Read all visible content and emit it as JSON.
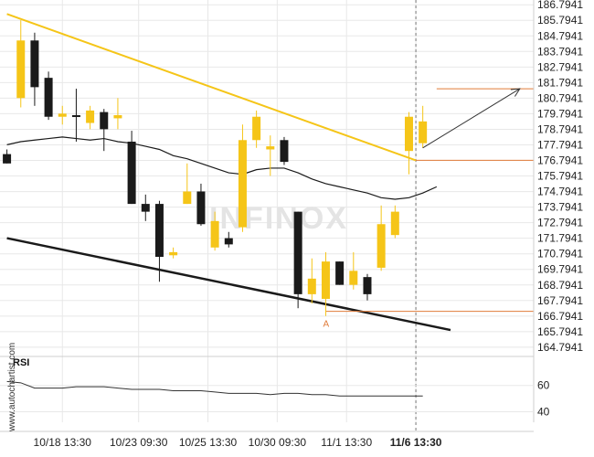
{
  "chart_data": [
    {
      "type": "candlestick",
      "watermark": "INFINOX",
      "side_label": "www.autochartist.com",
      "y_ticks": [
        "186.7941",
        "185.7941",
        "184.7941",
        "183.7941",
        "182.7941",
        "181.7941",
        "180.7941",
        "179.7941",
        "178.7941",
        "177.7941",
        "176.7941",
        "175.7941",
        "174.7941",
        "173.7941",
        "172.7941",
        "171.7941",
        "170.7941",
        "169.7941",
        "168.7941",
        "167.7941",
        "166.7941",
        "165.7941",
        "164.7941"
      ],
      "ylim": [
        164.2,
        187.1
      ],
      "x_ticks": [
        {
          "label": "10/18 13:30",
          "x": 4,
          "bold": false
        },
        {
          "label": "10/23 09:30",
          "x": 9.5,
          "bold": false
        },
        {
          "label": "10/25 13:30",
          "x": 14.5,
          "bold": false
        },
        {
          "label": "10/30 09:30",
          "x": 19.5,
          "bold": false
        },
        {
          "label": "11/1 13:30",
          "x": 24.5,
          "bold": false
        },
        {
          "label": "11/6 13:30",
          "x": 29.5,
          "bold": true
        }
      ],
      "xlim": [
        -0.5,
        38
      ],
      "colors": {
        "bull": "#f5c518",
        "bear": "#1a1a1a",
        "trend": "#f5c518",
        "support": "#1a1a1a",
        "level": "#e07b39",
        "ma": "#1a1a1a",
        "grid": "#e8e8e8"
      },
      "candles": [
        {
          "x": 0,
          "o": 177.2,
          "h": 177.5,
          "l": 176.6,
          "c": 176.6
        },
        {
          "x": 1,
          "o": 180.8,
          "h": 185.8,
          "l": 180.2,
          "c": 184.5
        },
        {
          "x": 2,
          "o": 184.5,
          "h": 185.0,
          "l": 180.3,
          "c": 181.5
        },
        {
          "x": 3,
          "o": 182.1,
          "h": 182.5,
          "l": 179.4,
          "c": 179.6
        },
        {
          "x": 4,
          "o": 179.6,
          "h": 180.3,
          "l": 179.1,
          "c": 179.8
        },
        {
          "x": 5,
          "o": 179.7,
          "h": 181.4,
          "l": 178.0,
          "c": 179.6
        },
        {
          "x": 6,
          "o": 179.2,
          "h": 180.3,
          "l": 178.8,
          "c": 180.0
        },
        {
          "x": 7,
          "o": 179.9,
          "h": 180.1,
          "l": 177.4,
          "c": 178.8
        },
        {
          "x": 8,
          "o": 179.5,
          "h": 180.8,
          "l": 178.8,
          "c": 179.7
        },
        {
          "x": 9,
          "o": 178.0,
          "h": 178.7,
          "l": 174.0,
          "c": 174.0
        },
        {
          "x": 10,
          "o": 174.0,
          "h": 174.6,
          "l": 172.9,
          "c": 173.5
        },
        {
          "x": 11,
          "o": 174.0,
          "h": 174.2,
          "l": 169.0,
          "c": 170.6
        },
        {
          "x": 12,
          "o": 170.7,
          "h": 171.2,
          "l": 170.5,
          "c": 170.9
        },
        {
          "x": 13,
          "o": 174.0,
          "h": 176.6,
          "l": 174.0,
          "c": 174.8
        },
        {
          "x": 14,
          "o": 174.8,
          "h": 175.3,
          "l": 172.6,
          "c": 172.7
        },
        {
          "x": 15,
          "o": 171.2,
          "h": 173.5,
          "l": 171.0,
          "c": 172.9
        },
        {
          "x": 16,
          "o": 171.8,
          "h": 172.2,
          "l": 171.2,
          "c": 171.4
        },
        {
          "x": 17,
          "o": 172.5,
          "h": 179.1,
          "l": 172.2,
          "c": 178.1
        },
        {
          "x": 18,
          "o": 178.1,
          "h": 180.0,
          "l": 177.6,
          "c": 179.6
        },
        {
          "x": 19,
          "o": 177.5,
          "h": 178.4,
          "l": 175.8,
          "c": 177.7
        },
        {
          "x": 20,
          "o": 178.1,
          "h": 178.3,
          "l": 176.5,
          "c": 176.7
        },
        {
          "x": 21,
          "o": 173.5,
          "h": 173.5,
          "l": 167.3,
          "c": 168.2
        },
        {
          "x": 22,
          "o": 168.2,
          "h": 170.5,
          "l": 167.6,
          "c": 169.2
        },
        {
          "x": 23,
          "o": 167.9,
          "h": 170.9,
          "l": 166.8,
          "c": 170.3
        },
        {
          "x": 24,
          "o": 170.3,
          "h": 170.3,
          "l": 168.8,
          "c": 168.8
        },
        {
          "x": 25,
          "o": 168.8,
          "h": 170.9,
          "l": 168.5,
          "c": 169.7
        },
        {
          "x": 26,
          "o": 169.3,
          "h": 169.5,
          "l": 167.8,
          "c": 168.2
        },
        {
          "x": 27,
          "o": 169.9,
          "h": 173.9,
          "l": 169.7,
          "c": 172.7
        },
        {
          "x": 28,
          "o": 172.0,
          "h": 173.9,
          "l": 171.8,
          "c": 173.5
        },
        {
          "x": 29,
          "o": 177.4,
          "h": 179.9,
          "l": 175.9,
          "c": 179.6
        },
        {
          "x": 30,
          "o": 177.9,
          "h": 180.3,
          "l": 177.6,
          "c": 179.3
        }
      ],
      "moving_average": {
        "x": [
          0,
          1,
          2,
          3,
          4,
          5,
          6,
          7,
          8,
          9,
          10,
          11,
          12,
          13,
          14,
          15,
          16,
          17,
          18,
          19,
          20,
          21,
          22,
          23,
          24,
          25,
          26,
          27,
          28,
          29,
          30,
          31
        ],
        "y": [
          177.8,
          178.0,
          178.1,
          178.2,
          178.3,
          178.2,
          178.1,
          178.2,
          178.0,
          177.9,
          177.7,
          177.5,
          177.1,
          176.9,
          176.6,
          176.3,
          176.0,
          175.9,
          176.2,
          176.3,
          176.3,
          176.0,
          175.6,
          175.3,
          175.1,
          174.9,
          174.7,
          174.4,
          174.3,
          174.4,
          174.7,
          175.1
        ]
      },
      "lines": [
        {
          "name": "resistance-trendline",
          "x": [
            0,
            29.5
          ],
          "y": [
            186.2,
            176.8
          ]
        },
        {
          "name": "support-trendline",
          "x": [
            0,
            32
          ],
          "y": [
            171.8,
            165.9
          ]
        }
      ],
      "levels": [
        {
          "name": "resistance-level",
          "y": 176.8,
          "x_from": 29.5
        },
        {
          "name": "target-level",
          "y": 181.4,
          "x_from": 31
        },
        {
          "name": "support-level",
          "y": 167.1,
          "x_from": 23
        }
      ],
      "forecast_arrow": {
        "x": [
          30,
          37
        ],
        "y": [
          177.6,
          181.4
        ]
      },
      "marker": {
        "label": "A",
        "x": 23,
        "y": 166.8
      },
      "current_time_x": 29.5
    },
    {
      "type": "line",
      "title": "RSI",
      "y_ticks": [
        60,
        40
      ],
      "ylim": [
        32,
        73
      ],
      "x": [
        0,
        1,
        2,
        3,
        4,
        5,
        6,
        7,
        8,
        9,
        10,
        11,
        12,
        13,
        14,
        15,
        16,
        17,
        18,
        19,
        20,
        21,
        22,
        23,
        24,
        25,
        26,
        27,
        28,
        29,
        30
      ],
      "y": [
        63,
        62,
        58,
        58,
        58,
        59,
        59,
        59,
        58,
        57,
        57,
        57,
        56,
        56,
        56,
        55,
        54,
        54,
        54,
        53,
        54,
        54,
        53,
        53,
        52,
        52,
        52,
        52,
        52,
        52,
        52
      ]
    }
  ]
}
